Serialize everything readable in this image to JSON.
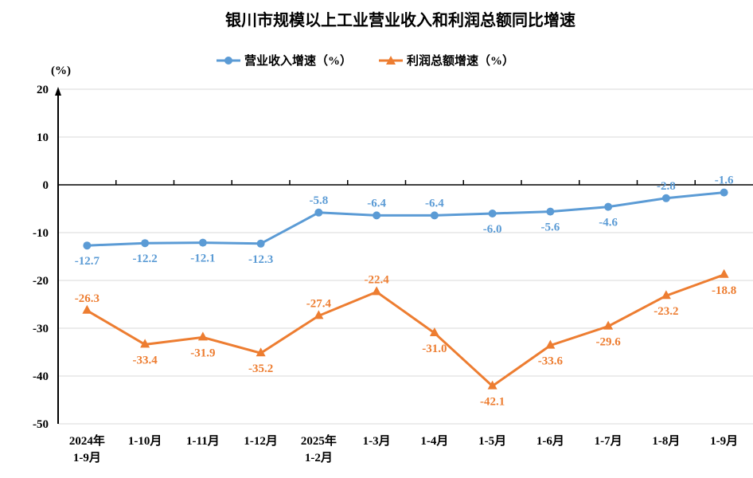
{
  "chart_data": {
    "type": "line",
    "title": "银川市规模以上工业营业收入和利润总额同比增速",
    "ylabel": "(%)",
    "xlabel": "",
    "ylim": [
      -50,
      20
    ],
    "yticks": [
      20,
      10,
      0,
      -10,
      -20,
      -30,
      -40,
      -50
    ],
    "grid": true,
    "legend": "top",
    "categories": [
      [
        "2024年",
        "1-9月"
      ],
      [
        "1-10月"
      ],
      [
        "1-11月"
      ],
      [
        "1-12月"
      ],
      [
        "2025年",
        "1-2月"
      ],
      [
        "1-3月"
      ],
      [
        "1-4月"
      ],
      [
        "1-5月"
      ],
      [
        "1-6月"
      ],
      [
        "1-7月"
      ],
      [
        "1-8月"
      ],
      [
        "1-9月"
      ]
    ],
    "series": [
      {
        "name": "营业收入增速（%）",
        "color": "#5B9BD5",
        "marker": "circle",
        "values": [
          -12.7,
          -12.2,
          -12.1,
          -12.3,
          -5.8,
          -6.4,
          -6.4,
          -6.0,
          -5.6,
          -4.6,
          -2.8,
          -1.6
        ],
        "labels": [
          "-12.7",
          "-12.2",
          "-12.1",
          "-12.3",
          "-5.8",
          "-6.4",
          "-6.4",
          "-6.0",
          "-5.6",
          "-4.6",
          "-2.8",
          "-1.6"
        ]
      },
      {
        "name": "利润总额增速（%）",
        "color": "#ED7D31",
        "marker": "triangle",
        "values": [
          -26.3,
          -33.4,
          -31.9,
          -35.2,
          -27.4,
          -22.4,
          -31.0,
          -42.1,
          -33.6,
          -29.6,
          -23.2,
          -18.8
        ],
        "labels": [
          "-26.3",
          "-33.4",
          "-31.9",
          "-35.2",
          "-27.4",
          "-22.4",
          "-31.0",
          "-42.1",
          "-33.6",
          "-29.6",
          "-23.2",
          "-18.8"
        ]
      }
    ]
  }
}
